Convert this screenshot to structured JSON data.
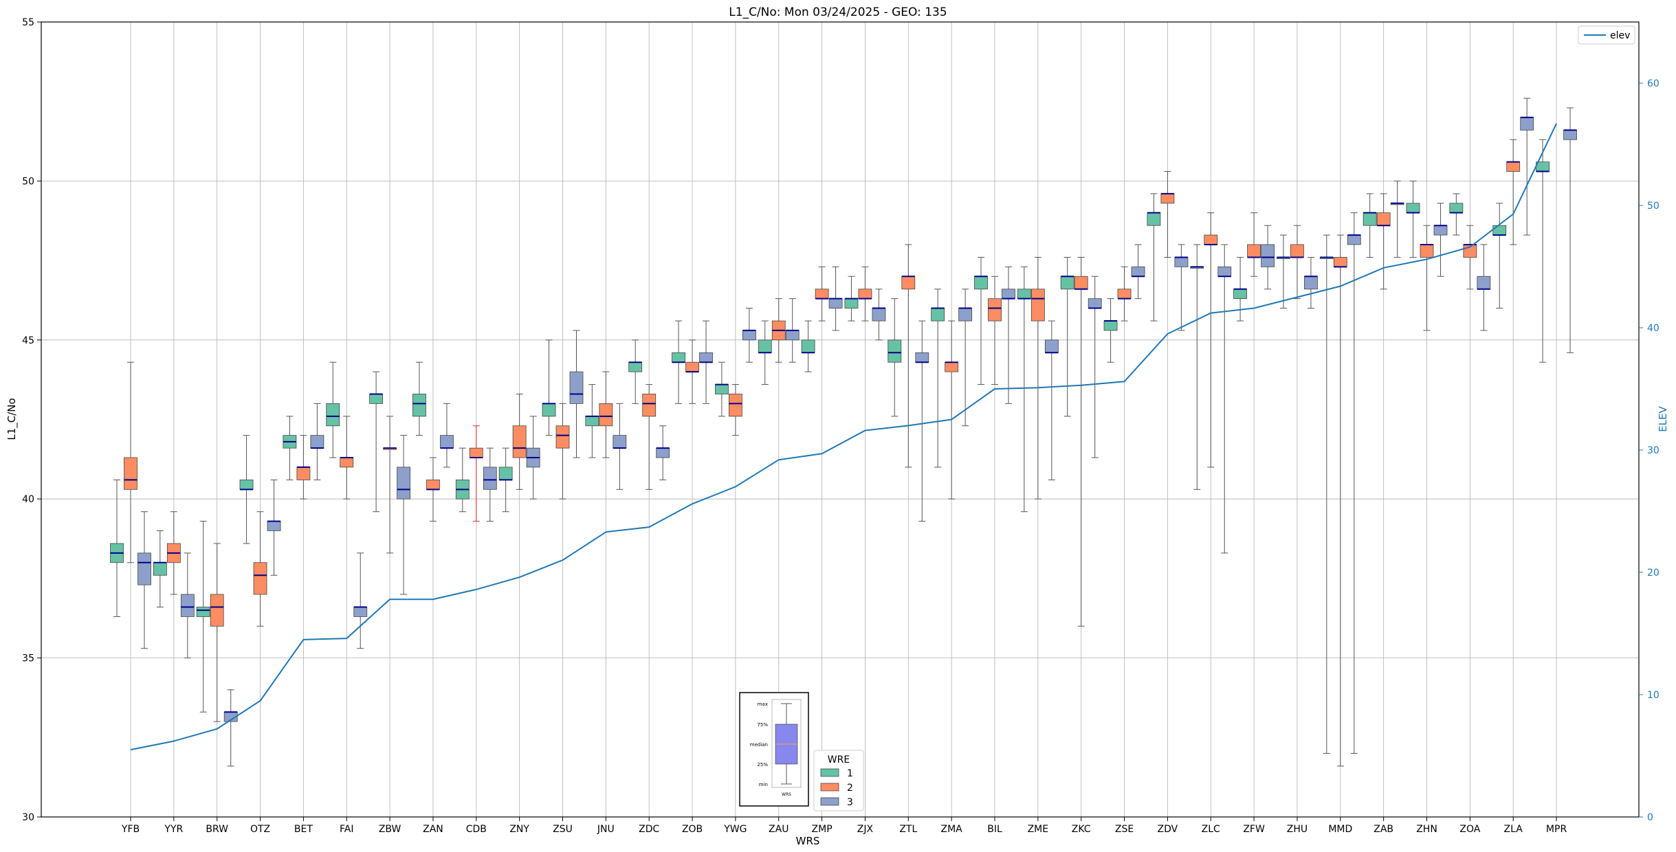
{
  "chart_data": {
    "type": "box",
    "title": "L1_C/No: Mon 03/24/2025 - GEO: 135",
    "xlabel": "WRS",
    "ylabel": "L1_C/No",
    "y2label": "ELEV",
    "ylim": [
      30,
      55
    ],
    "y2lim": [
      0,
      65
    ],
    "yticks": [
      30,
      35,
      40,
      45,
      50,
      55
    ],
    "y2ticks": [
      0,
      10,
      20,
      30,
      40,
      50,
      60
    ],
    "grid": true,
    "legend_line": {
      "label": "elev",
      "position": "top-right"
    },
    "legend_wre": {
      "title": "WRE",
      "entries": [
        "1",
        "2",
        "3"
      ],
      "position": "bottom-center"
    },
    "key_labels": [
      "max",
      "75%",
      "median",
      "25%",
      "min",
      "WRS"
    ],
    "colors": {
      "1": "#66c2a5",
      "2": "#fc8d62",
      "3": "#8da0cb",
      "line": "#1f77b4",
      "median": "#00008b",
      "red_whisker": "#d62728"
    },
    "categories": [
      "YFB",
      "YYR",
      "BRW",
      "OTZ",
      "BET",
      "FAI",
      "ZBW",
      "ZAN",
      "CDB",
      "ZNY",
      "ZSU",
      "JNU",
      "ZDC",
      "ZOB",
      "YWG",
      "ZAU",
      "ZMP",
      "ZJX",
      "ZTL",
      "ZMA",
      "BIL",
      "ZME",
      "ZKC",
      "ZSE",
      "ZDV",
      "ZLC",
      "ZFW",
      "ZHU",
      "MMD",
      "ZAB",
      "ZHN",
      "ZOA",
      "ZLA",
      "MPR"
    ],
    "elev": [
      5.5,
      6.2,
      7.2,
      9.5,
      14.5,
      14.6,
      17.8,
      17.8,
      18.6,
      19.6,
      21.0,
      23.3,
      23.7,
      25.6,
      27.0,
      29.2,
      29.7,
      31.6,
      32.0,
      32.5,
      35.0,
      35.1,
      35.3,
      35.6,
      39.5,
      41.2,
      41.6,
      42.5,
      43.4,
      44.9,
      45.6,
      46.6,
      49.3,
      56.7
    ],
    "boxes": [
      {
        "wrs": "YFB",
        "wre": "1",
        "min": 36.3,
        "q1": 38.0,
        "median": 38.3,
        "q3": 38.6,
        "max": 40.6
      },
      {
        "wrs": "YFB",
        "wre": "2",
        "min": 38.0,
        "q1": 40.3,
        "median": 40.6,
        "q3": 41.3,
        "max": 44.3
      },
      {
        "wrs": "YFB",
        "wre": "3",
        "min": 35.3,
        "q1": 37.3,
        "median": 38.0,
        "q3": 38.3,
        "max": 39.6
      },
      {
        "wrs": "YYR",
        "wre": "1",
        "min": 36.6,
        "q1": 37.6,
        "median": 38.0,
        "q3": 38.0,
        "max": 39.0
      },
      {
        "wrs": "YYR",
        "wre": "2",
        "min": 37.0,
        "q1": 38.0,
        "median": 38.3,
        "q3": 38.6,
        "max": 39.6
      },
      {
        "wrs": "YYR",
        "wre": "3",
        "min": 35.0,
        "q1": 36.3,
        "median": 36.6,
        "q3": 37.0,
        "max": 38.3
      },
      {
        "wrs": "BRW",
        "wre": "1",
        "min": 33.3,
        "q1": 36.3,
        "median": 36.5,
        "q3": 36.6,
        "max": 39.3
      },
      {
        "wrs": "BRW",
        "wre": "2",
        "min": 33.0,
        "q1": 36.0,
        "median": 36.6,
        "q3": 37.0,
        "max": 38.6
      },
      {
        "wrs": "BRW",
        "wre": "3",
        "min": 31.6,
        "q1": 33.0,
        "median": 33.3,
        "q3": 33.3,
        "max": 34.0
      },
      {
        "wrs": "OTZ",
        "wre": "1",
        "min": 38.6,
        "q1": 40.3,
        "median": 40.3,
        "q3": 40.6,
        "max": 42.0
      },
      {
        "wrs": "OTZ",
        "wre": "2",
        "min": 36.0,
        "q1": 37.0,
        "median": 37.6,
        "q3": 38.0,
        "max": 39.6
      },
      {
        "wrs": "OTZ",
        "wre": "3",
        "min": 37.6,
        "q1": 39.0,
        "median": 39.3,
        "q3": 39.3,
        "max": 40.6
      },
      {
        "wrs": "BET",
        "wre": "1",
        "min": 40.6,
        "q1": 41.6,
        "median": 41.8,
        "q3": 42.0,
        "max": 42.6
      },
      {
        "wrs": "BET",
        "wre": "2",
        "min": 40.0,
        "q1": 40.6,
        "median": 41.0,
        "q3": 41.0,
        "max": 42.0
      },
      {
        "wrs": "BET",
        "wre": "3",
        "min": 40.6,
        "q1": 41.6,
        "median": 41.6,
        "q3": 42.0,
        "max": 43.0
      },
      {
        "wrs": "FAI",
        "wre": "1",
        "min": 41.3,
        "q1": 42.3,
        "median": 42.6,
        "q3": 43.0,
        "max": 44.3
      },
      {
        "wrs": "FAI",
        "wre": "2",
        "min": 40.0,
        "q1": 41.0,
        "median": 41.3,
        "q3": 41.3,
        "max": 42.6
      },
      {
        "wrs": "FAI",
        "wre": "3",
        "min": 35.3,
        "q1": 36.3,
        "median": 36.6,
        "q3": 36.6,
        "max": 38.3
      },
      {
        "wrs": "ZBW",
        "wre": "1",
        "min": 39.6,
        "q1": 43.0,
        "median": 43.3,
        "q3": 43.3,
        "max": 44.0
      },
      {
        "wrs": "ZBW",
        "wre": "2",
        "min": 38.3,
        "q1": 41.6,
        "median": 41.6,
        "q3": 41.6,
        "max": 42.6
      },
      {
        "wrs": "ZBW",
        "wre": "3",
        "min": 37.0,
        "q1": 40.0,
        "median": 40.3,
        "q3": 41.0,
        "max": 42.0
      },
      {
        "wrs": "ZAN",
        "wre": "1",
        "min": 42.0,
        "q1": 42.6,
        "median": 43.0,
        "q3": 43.3,
        "max": 44.3
      },
      {
        "wrs": "ZAN",
        "wre": "2",
        "min": 39.3,
        "q1": 40.3,
        "median": 40.3,
        "q3": 40.6,
        "max": 41.3
      },
      {
        "wrs": "ZAN",
        "wre": "3",
        "min": 41.0,
        "q1": 41.6,
        "median": 41.6,
        "q3": 42.0,
        "max": 43.0
      },
      {
        "wrs": "CDB",
        "wre": "1",
        "min": 39.6,
        "q1": 40.0,
        "median": 40.3,
        "q3": 40.6,
        "max": 41.6
      },
      {
        "wrs": "CDB",
        "wre": "2",
        "min": 39.3,
        "q1": 41.3,
        "median": 41.3,
        "q3": 41.6,
        "max": 42.3,
        "red": true
      },
      {
        "wrs": "CDB",
        "wre": "3",
        "min": 39.3,
        "q1": 40.3,
        "median": 40.6,
        "q3": 41.0,
        "max": 41.6
      },
      {
        "wrs": "ZNY",
        "wre": "1",
        "min": 39.6,
        "q1": 40.6,
        "median": 40.6,
        "q3": 41.0,
        "max": 41.6
      },
      {
        "wrs": "ZNY",
        "wre": "2",
        "min": 40.3,
        "q1": 41.3,
        "median": 41.6,
        "q3": 42.3,
        "max": 43.3
      },
      {
        "wrs": "ZNY",
        "wre": "3",
        "min": 40.0,
        "q1": 41.0,
        "median": 41.3,
        "q3": 41.6,
        "max": 42.6
      },
      {
        "wrs": "ZSU",
        "wre": "1",
        "min": 42.0,
        "q1": 42.6,
        "median": 43.0,
        "q3": 43.0,
        "max": 45.0
      },
      {
        "wrs": "ZSU",
        "wre": "2",
        "min": 40.0,
        "q1": 41.6,
        "median": 42.0,
        "q3": 42.3,
        "max": 43.0
      },
      {
        "wrs": "ZSU",
        "wre": "3",
        "min": 41.3,
        "q1": 43.0,
        "median": 43.3,
        "q3": 44.0,
        "max": 45.3
      },
      {
        "wrs": "JNU",
        "wre": "1",
        "min": 41.3,
        "q1": 42.3,
        "median": 42.6,
        "q3": 42.6,
        "max": 43.6
      },
      {
        "wrs": "JNU",
        "wre": "2",
        "min": 41.3,
        "q1": 42.3,
        "median": 42.6,
        "q3": 43.0,
        "max": 44.0
      },
      {
        "wrs": "JNU",
        "wre": "3",
        "min": 40.3,
        "q1": 41.6,
        "median": 41.6,
        "q3": 42.0,
        "max": 43.0
      },
      {
        "wrs": "ZDC",
        "wre": "1",
        "min": 43.0,
        "q1": 44.0,
        "median": 44.3,
        "q3": 44.3,
        "max": 45.0
      },
      {
        "wrs": "ZDC",
        "wre": "2",
        "min": 40.3,
        "q1": 42.6,
        "median": 43.0,
        "q3": 43.3,
        "max": 43.6
      },
      {
        "wrs": "ZDC",
        "wre": "3",
        "min": 40.6,
        "q1": 41.3,
        "median": 41.6,
        "q3": 41.6,
        "max": 42.3
      },
      {
        "wrs": "ZOB",
        "wre": "1",
        "min": 43.0,
        "q1": 44.3,
        "median": 44.3,
        "q3": 44.6,
        "max": 45.6
      },
      {
        "wrs": "ZOB",
        "wre": "2",
        "min": 43.0,
        "q1": 44.0,
        "median": 44.0,
        "q3": 44.3,
        "max": 45.0
      },
      {
        "wrs": "ZOB",
        "wre": "3",
        "min": 43.0,
        "q1": 44.3,
        "median": 44.3,
        "q3": 44.6,
        "max": 45.6
      },
      {
        "wrs": "YWG",
        "wre": "1",
        "min": 42.6,
        "q1": 43.3,
        "median": 43.6,
        "q3": 43.6,
        "max": 44.3
      },
      {
        "wrs": "YWG",
        "wre": "2",
        "min": 42.0,
        "q1": 42.6,
        "median": 43.0,
        "q3": 43.3,
        "max": 43.6
      },
      {
        "wrs": "YWG",
        "wre": "3",
        "min": 44.3,
        "q1": 45.0,
        "median": 45.3,
        "q3": 45.3,
        "max": 46.0
      },
      {
        "wrs": "ZAU",
        "wre": "1",
        "min": 43.6,
        "q1": 44.6,
        "median": 44.6,
        "q3": 45.0,
        "max": 45.6
      },
      {
        "wrs": "ZAU",
        "wre": "2",
        "min": 44.3,
        "q1": 45.0,
        "median": 45.3,
        "q3": 45.6,
        "max": 46.3
      },
      {
        "wrs": "ZAU",
        "wre": "3",
        "min": 44.3,
        "q1": 45.0,
        "median": 45.3,
        "q3": 45.3,
        "max": 46.3
      },
      {
        "wrs": "ZMP",
        "wre": "1",
        "min": 44.0,
        "q1": 44.6,
        "median": 44.6,
        "q3": 45.0,
        "max": 45.6
      },
      {
        "wrs": "ZMP",
        "wre": "2",
        "min": 45.6,
        "q1": 46.3,
        "median": 46.3,
        "q3": 46.6,
        "max": 47.3
      },
      {
        "wrs": "ZMP",
        "wre": "3",
        "min": 45.3,
        "q1": 46.0,
        "median": 46.3,
        "q3": 46.3,
        "max": 47.3
      },
      {
        "wrs": "ZJX",
        "wre": "1",
        "min": 45.6,
        "q1": 46.0,
        "median": 46.3,
        "q3": 46.3,
        "max": 47.0
      },
      {
        "wrs": "ZJX",
        "wre": "2",
        "min": 45.6,
        "q1": 46.3,
        "median": 46.3,
        "q3": 46.6,
        "max": 47.3
      },
      {
        "wrs": "ZJX",
        "wre": "3",
        "min": 45.0,
        "q1": 45.6,
        "median": 46.0,
        "q3": 46.0,
        "max": 46.6
      },
      {
        "wrs": "ZTL",
        "wre": "1",
        "min": 42.6,
        "q1": 44.3,
        "median": 44.6,
        "q3": 45.0,
        "max": 46.3
      },
      {
        "wrs": "ZTL",
        "wre": "2",
        "min": 41.0,
        "q1": 46.6,
        "median": 47.0,
        "q3": 47.0,
        "max": 48.0
      },
      {
        "wrs": "ZTL",
        "wre": "3",
        "min": 39.3,
        "q1": 44.3,
        "median": 44.3,
        "q3": 44.6,
        "max": 45.6
      },
      {
        "wrs": "ZMA",
        "wre": "1",
        "min": 41.0,
        "q1": 45.6,
        "median": 46.0,
        "q3": 46.0,
        "max": 46.6
      },
      {
        "wrs": "ZMA",
        "wre": "2",
        "min": 40.0,
        "q1": 44.0,
        "median": 44.3,
        "q3": 44.3,
        "max": 45.6
      },
      {
        "wrs": "ZMA",
        "wre": "3",
        "min": 42.3,
        "q1": 45.6,
        "median": 46.0,
        "q3": 46.0,
        "max": 46.6
      },
      {
        "wrs": "BIL",
        "wre": "1",
        "min": 43.6,
        "q1": 46.6,
        "median": 47.0,
        "q3": 47.0,
        "max": 47.6
      },
      {
        "wrs": "BIL",
        "wre": "2",
        "min": 43.6,
        "q1": 45.6,
        "median": 46.0,
        "q3": 46.3,
        "max": 47.0
      },
      {
        "wrs": "BIL",
        "wre": "3",
        "min": 43.0,
        "q1": 46.3,
        "median": 46.3,
        "q3": 46.6,
        "max": 47.3
      },
      {
        "wrs": "ZME",
        "wre": "1",
        "min": 39.6,
        "q1": 46.3,
        "median": 46.3,
        "q3": 46.6,
        "max": 47.3
      },
      {
        "wrs": "ZME",
        "wre": "2",
        "min": 40.0,
        "q1": 45.6,
        "median": 46.3,
        "q3": 46.6,
        "max": 47.6
      },
      {
        "wrs": "ZME",
        "wre": "3",
        "min": 40.6,
        "q1": 44.6,
        "median": 44.6,
        "q3": 45.0,
        "max": 45.6
      },
      {
        "wrs": "ZKC",
        "wre": "1",
        "min": 42.6,
        "q1": 46.6,
        "median": 47.0,
        "q3": 47.0,
        "max": 47.6
      },
      {
        "wrs": "ZKC",
        "wre": "2",
        "min": 36.0,
        "q1": 46.6,
        "median": 46.6,
        "q3": 47.0,
        "max": 47.6
      },
      {
        "wrs": "ZKC",
        "wre": "3",
        "min": 41.3,
        "q1": 46.0,
        "median": 46.0,
        "q3": 46.3,
        "max": 47.0
      },
      {
        "wrs": "ZSE",
        "wre": "1",
        "min": 44.3,
        "q1": 45.3,
        "median": 45.6,
        "q3": 45.6,
        "max": 46.3
      },
      {
        "wrs": "ZSE",
        "wre": "2",
        "min": 45.6,
        "q1": 46.3,
        "median": 46.3,
        "q3": 46.6,
        "max": 47.3
      },
      {
        "wrs": "ZSE",
        "wre": "3",
        "min": 46.3,
        "q1": 47.0,
        "median": 47.0,
        "q3": 47.3,
        "max": 48.0
      },
      {
        "wrs": "ZDV",
        "wre": "1",
        "min": 45.6,
        "q1": 48.6,
        "median": 49.0,
        "q3": 49.0,
        "max": 49.6
      },
      {
        "wrs": "ZDV",
        "wre": "2",
        "min": 47.6,
        "q1": 49.3,
        "median": 49.6,
        "q3": 49.6,
        "max": 50.3
      },
      {
        "wrs": "ZDV",
        "wre": "3",
        "min": 45.3,
        "q1": 47.3,
        "median": 47.6,
        "q3": 47.6,
        "max": 48.0
      },
      {
        "wrs": "ZLC",
        "wre": "1",
        "min": 40.3,
        "q1": 47.3,
        "median": 47.3,
        "q3": 47.3,
        "max": 48.0
      },
      {
        "wrs": "ZLC",
        "wre": "2",
        "min": 41.0,
        "q1": 48.0,
        "median": 48.0,
        "q3": 48.3,
        "max": 49.0
      },
      {
        "wrs": "ZLC",
        "wre": "3",
        "min": 38.3,
        "q1": 47.0,
        "median": 47.0,
        "q3": 47.3,
        "max": 48.0
      },
      {
        "wrs": "ZFW",
        "wre": "1",
        "min": 45.6,
        "q1": 46.3,
        "median": 46.6,
        "q3": 46.6,
        "max": 47.6
      },
      {
        "wrs": "ZFW",
        "wre": "2",
        "min": 47.0,
        "q1": 47.6,
        "median": 47.6,
        "q3": 48.0,
        "max": 49.0
      },
      {
        "wrs": "ZFW",
        "wre": "3",
        "min": 46.6,
        "q1": 47.3,
        "median": 47.6,
        "q3": 48.0,
        "max": 48.6
      },
      {
        "wrs": "ZHU",
        "wre": "1",
        "min": 46.0,
        "q1": 47.6,
        "median": 47.6,
        "q3": 47.6,
        "max": 48.3
      },
      {
        "wrs": "ZHU",
        "wre": "2",
        "min": 46.3,
        "q1": 47.6,
        "median": 47.6,
        "q3": 48.0,
        "max": 48.6
      },
      {
        "wrs": "ZHU",
        "wre": "3",
        "min": 46.0,
        "q1": 46.6,
        "median": 47.0,
        "q3": 47.0,
        "max": 47.6
      },
      {
        "wrs": "MMD",
        "wre": "1",
        "min": 32.0,
        "q1": 47.6,
        "median": 47.6,
        "q3": 47.6,
        "max": 48.3
      },
      {
        "wrs": "MMD",
        "wre": "2",
        "min": 31.6,
        "q1": 47.3,
        "median": 47.3,
        "q3": 47.6,
        "max": 48.3
      },
      {
        "wrs": "MMD",
        "wre": "3",
        "min": 32.0,
        "q1": 48.0,
        "median": 48.3,
        "q3": 48.3,
        "max": 49.0
      },
      {
        "wrs": "ZAB",
        "wre": "1",
        "min": 47.6,
        "q1": 48.6,
        "median": 49.0,
        "q3": 49.0,
        "max": 49.6
      },
      {
        "wrs": "ZAB",
        "wre": "2",
        "min": 46.6,
        "q1": 48.6,
        "median": 48.6,
        "q3": 49.0,
        "max": 49.6
      },
      {
        "wrs": "ZAB",
        "wre": "3",
        "min": 47.6,
        "q1": 49.3,
        "median": 49.3,
        "q3": 49.3,
        "max": 50.0
      },
      {
        "wrs": "ZHN",
        "wre": "1",
        "min": 47.6,
        "q1": 49.0,
        "median": 49.0,
        "q3": 49.3,
        "max": 50.0
      },
      {
        "wrs": "ZHN",
        "wre": "2",
        "min": 45.3,
        "q1": 47.6,
        "median": 48.0,
        "q3": 48.0,
        "max": 48.6
      },
      {
        "wrs": "ZHN",
        "wre": "3",
        "min": 47.0,
        "q1": 48.3,
        "median": 48.6,
        "q3": 48.6,
        "max": 49.3
      },
      {
        "wrs": "ZOA",
        "wre": "1",
        "min": 48.3,
        "q1": 49.0,
        "median": 49.0,
        "q3": 49.3,
        "max": 49.6
      },
      {
        "wrs": "ZOA",
        "wre": "2",
        "min": 46.6,
        "q1": 47.6,
        "median": 48.0,
        "q3": 48.0,
        "max": 48.6
      },
      {
        "wrs": "ZOA",
        "wre": "3",
        "min": 45.3,
        "q1": 46.6,
        "median": 46.6,
        "q3": 47.0,
        "max": 48.0
      },
      {
        "wrs": "ZLA",
        "wre": "1",
        "min": 46.0,
        "q1": 48.3,
        "median": 48.3,
        "q3": 48.6,
        "max": 49.3
      },
      {
        "wrs": "ZLA",
        "wre": "2",
        "min": 48.0,
        "q1": 50.3,
        "median": 50.6,
        "q3": 50.6,
        "max": 51.3
      },
      {
        "wrs": "ZLA",
        "wre": "3",
        "min": 48.3,
        "q1": 51.6,
        "median": 52.0,
        "q3": 52.0,
        "max": 52.6
      },
      {
        "wrs": "MPR",
        "wre": "1",
        "min": 44.3,
        "q1": 50.3,
        "median": 50.3,
        "q3": 50.6,
        "max": 51.3
      },
      {
        "wrs": "MPR",
        "wre": "3",
        "min": 44.6,
        "q1": 51.3,
        "median": 51.6,
        "q3": 51.6,
        "max": 52.3
      }
    ]
  }
}
